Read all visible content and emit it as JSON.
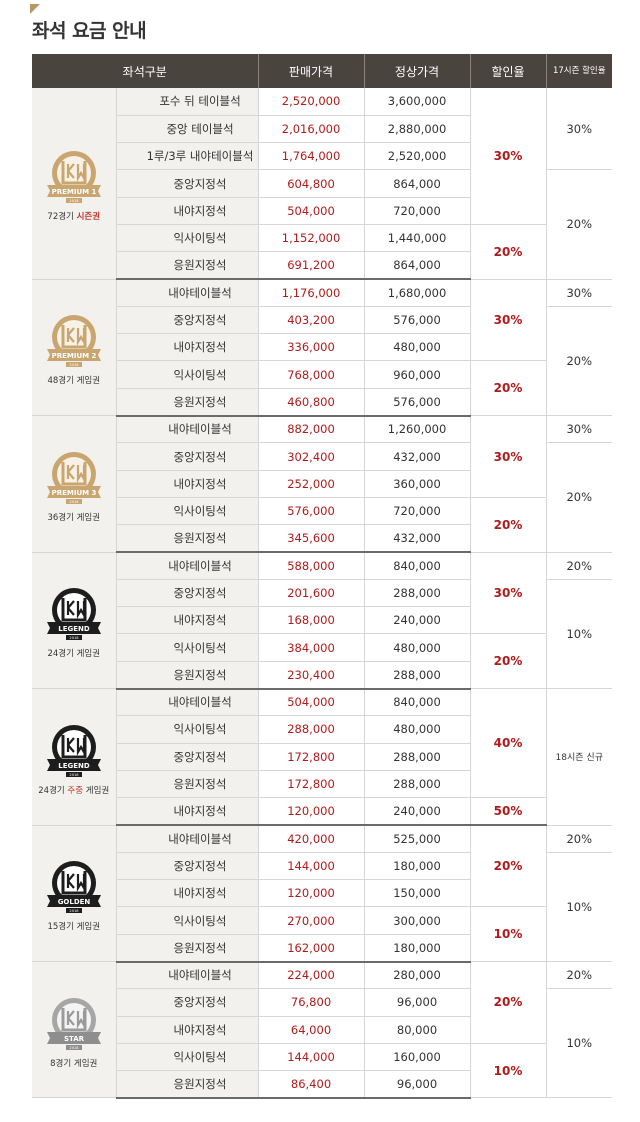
{
  "page_title": "좌석 요금 안내",
  "headers": {
    "category": "좌석구분",
    "sale_price": "판매가격",
    "regular_price": "정상가격",
    "discount": "할인율",
    "prev_discount": "17시즌 할인율"
  },
  "colors": {
    "header_bg": "#4a443f",
    "gold": "#c9a670",
    "sale_red": "#b01b1b",
    "black_badge": "#1d1d1d",
    "silver": "#a6a6a6"
  },
  "groups": [
    {
      "badge": {
        "name": "PREMIUM 1",
        "year": "2018",
        "style": "gold"
      },
      "label": "72경기",
      "label_highlight": "시즌권",
      "label_suffix": "",
      "rows": [
        {
          "seat": "포수 뒤 테이블석",
          "sale": "2,520,000",
          "regular": "3,600,000"
        },
        {
          "seat": "중앙 테이블석",
          "sale": "2,016,000",
          "regular": "2,880,000"
        },
        {
          "seat": "1루/3루 내야테이블석",
          "sale": "1,764,000",
          "regular": "2,520,000"
        },
        {
          "seat": "중앙지정석",
          "sale": "604,800",
          "regular": "864,000"
        },
        {
          "seat": "내야지정석",
          "sale": "504,000",
          "regular": "720,000"
        },
        {
          "seat": "익사이팅석",
          "sale": "1,152,000",
          "regular": "1,440,000"
        },
        {
          "seat": "응원지정석",
          "sale": "691,200",
          "regular": "864,000"
        }
      ],
      "discounts": [
        {
          "value": "30%",
          "span": 5
        },
        {
          "value": "20%",
          "span": 2
        }
      ],
      "prev": [
        {
          "value": "30%",
          "span": 3
        },
        {
          "value": "20%",
          "span": 4
        }
      ]
    },
    {
      "badge": {
        "name": "PREMIUM 2",
        "year": "2018",
        "style": "gold"
      },
      "label": "48경기 게임권",
      "label_highlight": "",
      "label_suffix": "",
      "rows": [
        {
          "seat": "내야테이블석",
          "sale": "1,176,000",
          "regular": "1,680,000"
        },
        {
          "seat": "중앙지정석",
          "sale": "403,200",
          "regular": "576,000"
        },
        {
          "seat": "내야지정석",
          "sale": "336,000",
          "regular": "480,000"
        },
        {
          "seat": "익사이팅석",
          "sale": "768,000",
          "regular": "960,000"
        },
        {
          "seat": "응원지정석",
          "sale": "460,800",
          "regular": "576,000"
        }
      ],
      "discounts": [
        {
          "value": "30%",
          "span": 3
        },
        {
          "value": "20%",
          "span": 2
        }
      ],
      "prev": [
        {
          "value": "30%",
          "span": 1
        },
        {
          "value": "20%",
          "span": 4
        }
      ]
    },
    {
      "badge": {
        "name": "PREMIUM 3",
        "year": "2018",
        "style": "gold"
      },
      "label": "36경기 게임권",
      "label_highlight": "",
      "label_suffix": "",
      "rows": [
        {
          "seat": "내야테이블석",
          "sale": "882,000",
          "regular": "1,260,000"
        },
        {
          "seat": "중앙지정석",
          "sale": "302,400",
          "regular": "432,000"
        },
        {
          "seat": "내야지정석",
          "sale": "252,000",
          "regular": "360,000"
        },
        {
          "seat": "익사이팅석",
          "sale": "576,000",
          "regular": "720,000"
        },
        {
          "seat": "응원지정석",
          "sale": "345,600",
          "regular": "432,000"
        }
      ],
      "discounts": [
        {
          "value": "30%",
          "span": 3
        },
        {
          "value": "20%",
          "span": 2
        }
      ],
      "prev": [
        {
          "value": "30%",
          "span": 1
        },
        {
          "value": "20%",
          "span": 4
        }
      ]
    },
    {
      "badge": {
        "name": "LEGEND",
        "year": "2018",
        "style": "black"
      },
      "label": "24경기 게임권",
      "label_highlight": "",
      "label_suffix": "",
      "rows": [
        {
          "seat": "내야테이블석",
          "sale": "588,000",
          "regular": "840,000"
        },
        {
          "seat": "중앙지정석",
          "sale": "201,600",
          "regular": "288,000"
        },
        {
          "seat": "내야지정석",
          "sale": "168,000",
          "regular": "240,000"
        },
        {
          "seat": "익사이팅석",
          "sale": "384,000",
          "regular": "480,000"
        },
        {
          "seat": "응원지정석",
          "sale": "230,400",
          "regular": "288,000"
        }
      ],
      "discounts": [
        {
          "value": "30%",
          "span": 3
        },
        {
          "value": "20%",
          "span": 2
        }
      ],
      "prev": [
        {
          "value": "20%",
          "span": 1
        },
        {
          "value": "10%",
          "span": 4
        }
      ]
    },
    {
      "badge": {
        "name": "LEGEND",
        "year": "2018",
        "style": "black"
      },
      "label": "24경기",
      "label_highlight": "주중",
      "label_suffix": "게임권",
      "rows": [
        {
          "seat": "내야테이블석",
          "sale": "504,000",
          "regular": "840,000"
        },
        {
          "seat": "익사이팅석",
          "sale": "288,000",
          "regular": "480,000"
        },
        {
          "seat": "중앙지정석",
          "sale": "172,800",
          "regular": "288,000"
        },
        {
          "seat": "응원지정석",
          "sale": "172,800",
          "regular": "288,000"
        },
        {
          "seat": "내야지정석",
          "sale": "120,000",
          "regular": "240,000"
        }
      ],
      "discounts": [
        {
          "value": "40%",
          "span": 4
        },
        {
          "value": "50%",
          "span": 1
        }
      ],
      "prev": [
        {
          "value": "18시즌 신규",
          "span": 5,
          "small": true
        }
      ]
    },
    {
      "badge": {
        "name": "GOLDEN",
        "year": "2018",
        "style": "black"
      },
      "label": "15경기 게임권",
      "label_highlight": "",
      "label_suffix": "",
      "rows": [
        {
          "seat": "내야테이블석",
          "sale": "420,000",
          "regular": "525,000"
        },
        {
          "seat": "중앙지정석",
          "sale": "144,000",
          "regular": "180,000"
        },
        {
          "seat": "내야지정석",
          "sale": "120,000",
          "regular": "150,000"
        },
        {
          "seat": "익사이팅석",
          "sale": "270,000",
          "regular": "300,000"
        },
        {
          "seat": "응원지정석",
          "sale": "162,000",
          "regular": "180,000"
        }
      ],
      "discounts": [
        {
          "value": "20%",
          "span": 3
        },
        {
          "value": "10%",
          "span": 2
        }
      ],
      "prev": [
        {
          "value": "20%",
          "span": 1
        },
        {
          "value": "10%",
          "span": 4
        }
      ]
    },
    {
      "badge": {
        "name": "STAR",
        "year": "2018",
        "style": "silver"
      },
      "label": "8경기 게임권",
      "label_highlight": "",
      "label_suffix": "",
      "rows": [
        {
          "seat": "내야테이블석",
          "sale": "224,000",
          "regular": "280,000"
        },
        {
          "seat": "중앙지정석",
          "sale": "76,800",
          "regular": "96,000"
        },
        {
          "seat": "내야지정석",
          "sale": "64,000",
          "regular": "80,000"
        },
        {
          "seat": "익사이팅석",
          "sale": "144,000",
          "regular": "160,000"
        },
        {
          "seat": "응원지정석",
          "sale": "86,400",
          "regular": "96,000"
        }
      ],
      "discounts": [
        {
          "value": "20%",
          "span": 3
        },
        {
          "value": "10%",
          "span": 2
        }
      ],
      "prev": [
        {
          "value": "20%",
          "span": 1
        },
        {
          "value": "10%",
          "span": 4
        }
      ]
    }
  ]
}
